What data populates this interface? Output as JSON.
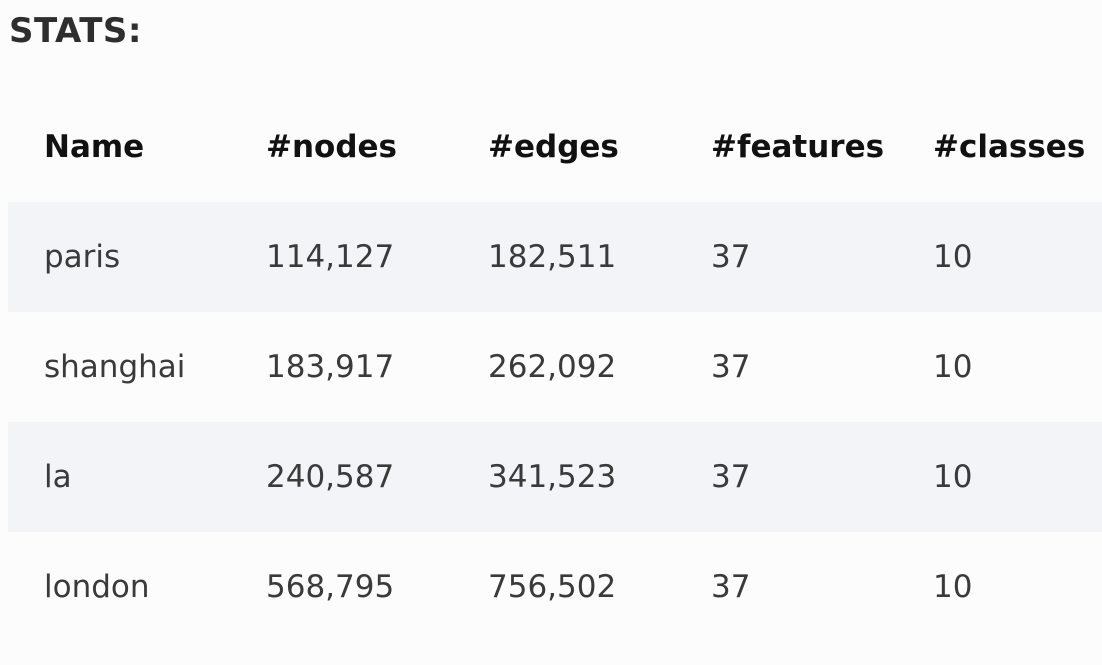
{
  "heading": "STATS:",
  "table": {
    "headers": [
      "Name",
      "#nodes",
      "#edges",
      "#features",
      "#classes"
    ],
    "rows": [
      [
        "paris",
        "114,127",
        "182,511",
        "37",
        "10"
      ],
      [
        "shanghai",
        "183,917",
        "262,092",
        "37",
        "10"
      ],
      [
        "la",
        "240,587",
        "341,523",
        "37",
        "10"
      ],
      [
        "london",
        "568,795",
        "756,502",
        "37",
        "10"
      ]
    ]
  },
  "colors": {
    "stripe": "#f3f4f7",
    "background": "#fcfcfd",
    "header_text": "#111111",
    "cell_text": "#3a3a3a"
  }
}
